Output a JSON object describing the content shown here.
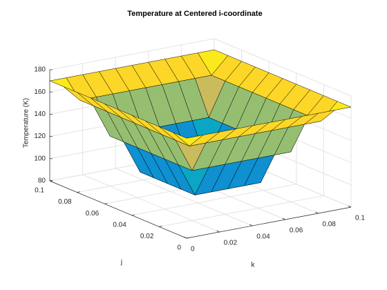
{
  "chart_data": {
    "type": "surface",
    "title": "Temperature at Centered i-coordinate",
    "xlabel": "k",
    "ylabel": "j",
    "zlabel": "Temperature (K)",
    "k": [
      0,
      0.01,
      0.02,
      0.03,
      0.04,
      0.05,
      0.06,
      0.07,
      0.08,
      0.09,
      0.1
    ],
    "j": [
      0,
      0.01,
      0.02,
      0.03,
      0.04,
      0.05,
      0.06,
      0.07,
      0.08,
      0.09,
      0.1
    ],
    "z": [
      [
        170,
        170,
        170,
        170,
        170,
        170,
        170,
        170,
        170,
        170,
        170
      ],
      [
        170,
        155,
        155,
        155,
        155,
        155,
        155,
        155,
        155,
        155,
        170
      ],
      [
        170,
        155,
        125,
        125,
        125,
        125,
        125,
        125,
        125,
        155,
        170
      ],
      [
        170,
        155,
        125,
        95,
        95,
        95,
        95,
        95,
        125,
        155,
        170
      ],
      [
        170,
        155,
        125,
        95,
        88,
        88,
        88,
        95,
        125,
        155,
        170
      ],
      [
        170,
        155,
        125,
        95,
        88,
        84,
        88,
        95,
        125,
        155,
        170
      ],
      [
        170,
        155,
        125,
        95,
        88,
        88,
        88,
        95,
        125,
        155,
        170
      ],
      [
        170,
        155,
        125,
        95,
        95,
        95,
        95,
        95,
        125,
        155,
        170
      ],
      [
        170,
        155,
        125,
        125,
        125,
        125,
        125,
        125,
        125,
        155,
        170
      ],
      [
        170,
        155,
        155,
        155,
        155,
        155,
        155,
        155,
        155,
        155,
        170
      ],
      [
        170,
        170,
        170,
        170,
        170,
        170,
        170,
        170,
        170,
        170,
        170
      ]
    ],
    "xlim": [
      0,
      0.1
    ],
    "xticks": [
      0,
      0.02,
      0.04,
      0.06,
      0.08,
      0.1
    ],
    "ylim": [
      0,
      0.1
    ],
    "yticks": [
      0,
      0.02,
      0.04,
      0.06,
      0.08,
      0.1
    ],
    "zlim": [
      80,
      180
    ],
    "zticks": [
      80,
      100,
      120,
      140,
      160,
      180
    ],
    "grid": true,
    "colormap": [
      "#352a87",
      "#0f5cdd",
      "#1481d6",
      "#06a4ca",
      "#2eb7a4",
      "#87bf77",
      "#d1bb59",
      "#fec832",
      "#f9fb0e"
    ]
  }
}
